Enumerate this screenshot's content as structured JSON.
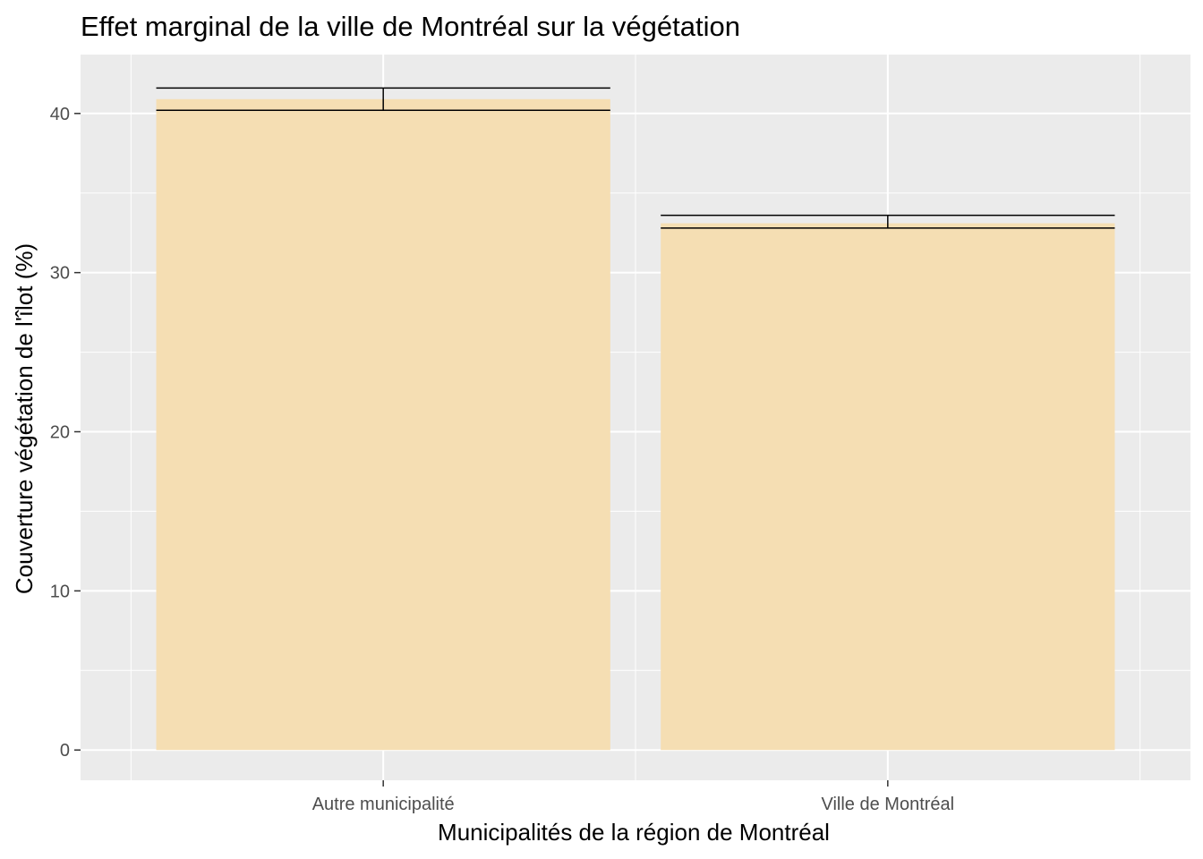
{
  "chart_data": {
    "type": "bar",
    "title": "Effet marginal de la ville de Montréal sur la végétation",
    "xlabel": "Municipalités de la région de Montréal",
    "ylabel": "Couverture végétation de l'îlot (%)",
    "categories": [
      "Autre municipalité",
      "Ville de Montréal"
    ],
    "values": [
      40.9,
      33.1
    ],
    "error_low": [
      40.2,
      32.8
    ],
    "error_high": [
      41.6,
      33.6
    ],
    "ylim": [
      -1.9,
      43.7
    ],
    "yticks": [
      0,
      10,
      20,
      30,
      40
    ],
    "grid": true,
    "legend": "none"
  },
  "colors": {
    "bar_fill": "#F5DEB3",
    "panel_background": "#EBEBEB",
    "grid": "#FFFFFF",
    "error_bar": "#000000"
  }
}
